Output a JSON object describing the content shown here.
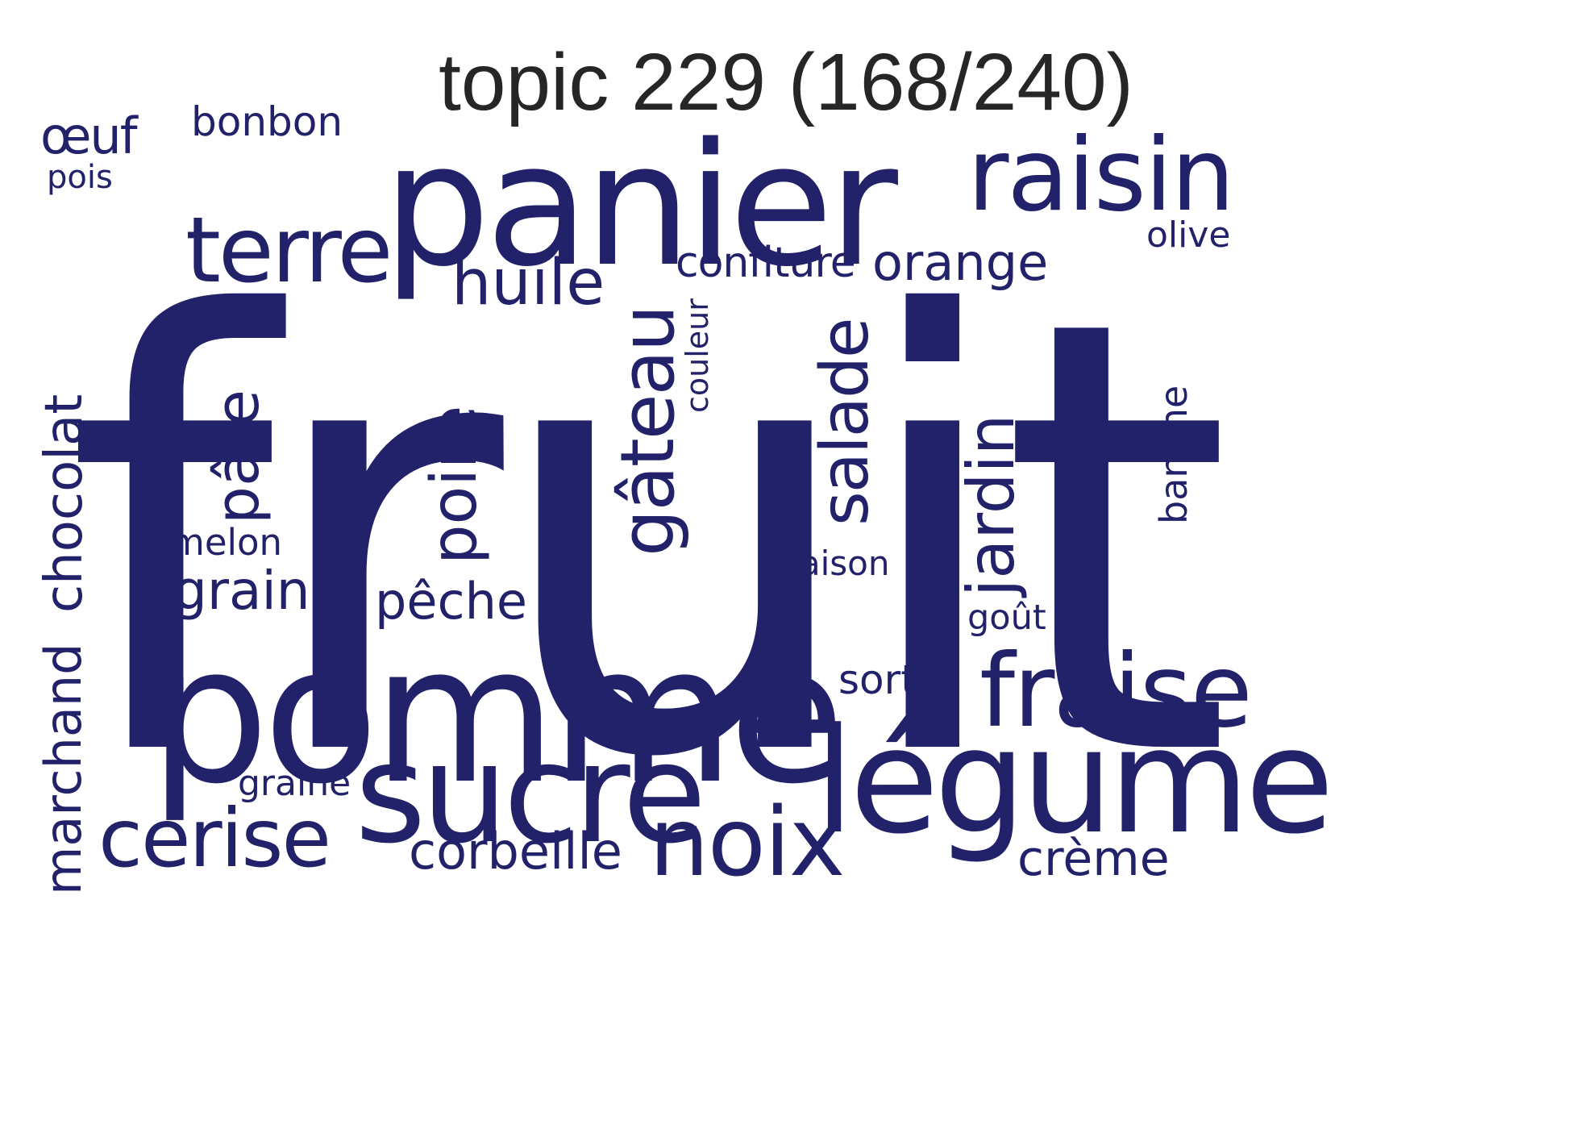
{
  "title": "topic 229 (168/240)",
  "colors": {
    "word": "#22226a",
    "title": "#262626",
    "background": "#ffffff"
  },
  "words": {
    "fruit": "fruit",
    "panier": "panier",
    "pomme": "pomme",
    "legume": "légume",
    "sucre": "sucre",
    "raisin": "raisin",
    "fraise": "fraise",
    "terre": "terre",
    "gateau": "gâteau",
    "noix": "noix",
    "cerise": "cerise",
    "salade": "salade",
    "poire": "poire",
    "jardin": "jardin",
    "huile": "huile",
    "pate": "pâte",
    "chocolat": "chocolat",
    "orange": "orange",
    "marchand": "marchand",
    "confiture": "confiture",
    "grain": "grain",
    "peche": "pêche",
    "corbeille": "corbeille",
    "creme": "crème",
    "oeuf": "œuf",
    "bonbon": "bonbon",
    "sorte": "sorte",
    "olive": "olive",
    "melon": "melon",
    "saison": "saison",
    "banane": "banane",
    "graine": "graine",
    "gout": "goût",
    "pois": "pois",
    "couleur": "couleur"
  }
}
